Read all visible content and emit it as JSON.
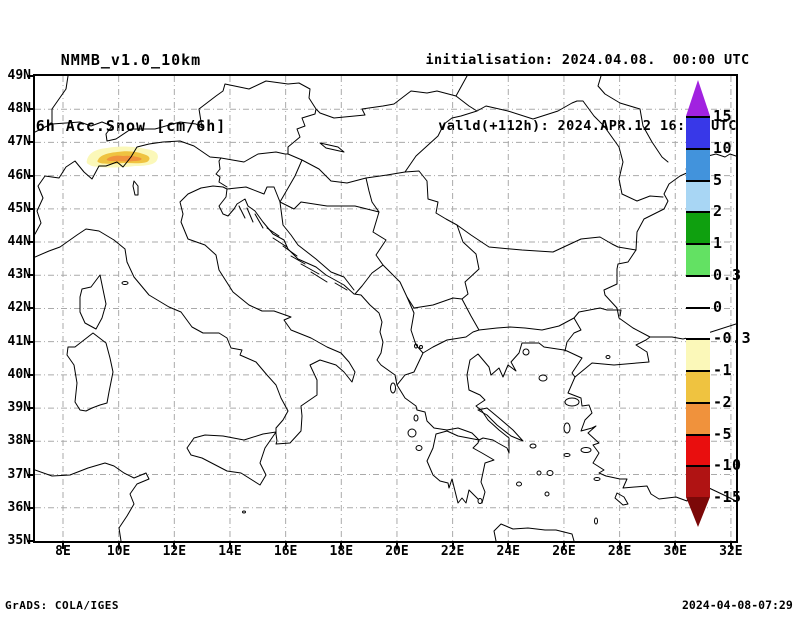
{
  "header": {
    "model_line": "NMMB_v1.0_10km",
    "product_line": "6h Acc.Snow [cm/6h]",
    "init_line": "initialisation: 2024.04.08.  00:00 UTC",
    "valid_line": "valld(+112h): 2024.APR.12 16:00 UTC"
  },
  "map": {
    "lat_ticks": [
      "49N",
      "48N",
      "47N",
      "46N",
      "45N",
      "44N",
      "43N",
      "42N",
      "41N",
      "40N",
      "39N",
      "38N",
      "37N",
      "36N",
      "35N"
    ],
    "lon_ticks": [
      "8E",
      "10E",
      "12E",
      "14E",
      "16E",
      "18E",
      "20E",
      "22E",
      "24E",
      "26E",
      "28E",
      "30E",
      "32E"
    ],
    "grid_color": "#aaaaaa",
    "coast_color": "#000000"
  },
  "colorbar": {
    "unit": "cm/6h",
    "labels": [
      "15",
      "10",
      "5",
      "2",
      "1",
      "0.3",
      "0",
      "-0.3",
      "-1",
      "-2",
      "-5",
      "-10",
      "-15"
    ],
    "top_triangle_color": "#a122e0",
    "bottom_triangle_color": "#7c0808",
    "segment_colors_top_to_bottom": [
      "#3838e8",
      "#4293dc",
      "#a8d6f4",
      "#0fa00f",
      "#63e163",
      "#ffffff",
      "#ffffff",
      "#fbf8b9",
      "#efc340",
      "#f0923c",
      "#e90e0e",
      "#b01313"
    ],
    "segment_ranges_top_to_bottom": [
      "10 to 15",
      "5 to 10",
      "2 to 5",
      "1 to 2",
      "0.3 to 1",
      "0 to 0.3",
      "-0.3 to 0",
      "-1 to -0.3",
      "-2 to -1",
      "-5 to -2",
      "-10 to -5",
      "-15 to -10"
    ]
  },
  "overlay": {
    "snow_patch": {
      "region": "Alps near Swiss-Italian border",
      "lon_range_deg_e": [
        8.8,
        11.5
      ],
      "lat_range_deg_n": [
        46.2,
        46.8
      ],
      "levels_cm": [
        "-0.3 to -1",
        "-1 to -2",
        "-2 to -5"
      ],
      "colors": [
        "#fbf8b9",
        "#efc340",
        "#f0923c"
      ]
    }
  },
  "footer": {
    "left": "GrADS: COLA/IGES",
    "right": "2024-04-08-07:29"
  }
}
